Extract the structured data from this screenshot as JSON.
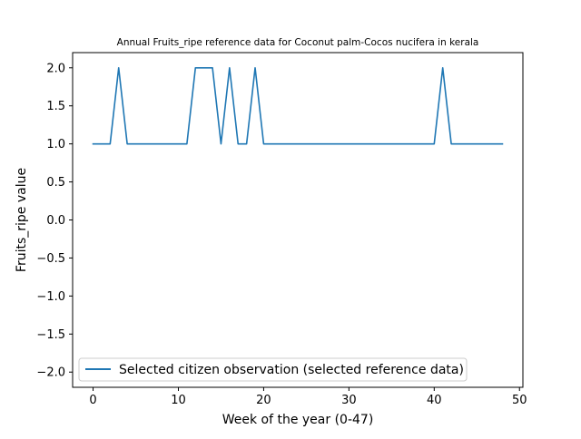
{
  "chart_data": {
    "type": "line",
    "title": "Annual Fruits_ripe reference data for Coconut palm-Cocos nucifera in kerala",
    "xlabel": "Week of the year (0-47)",
    "ylabel": "Fruits_ripe value",
    "xlim": [
      -2.4,
      50.4
    ],
    "ylim": [
      -2.2,
      2.2
    ],
    "xticks": [
      0,
      10,
      20,
      30,
      40,
      50
    ],
    "xtick_labels": [
      "0",
      "10",
      "20",
      "30",
      "40",
      "50"
    ],
    "yticks": [
      2.0,
      1.5,
      1.0,
      0.5,
      0.0,
      -0.5,
      -1.0,
      -1.5,
      -2.0
    ],
    "ytick_labels": [
      "2.0",
      "1.5",
      "1.0",
      "0.5",
      "0.0",
      "−0.5",
      "−1.0",
      "−1.5",
      "−2.0"
    ],
    "grid": false,
    "legend_position": "lower-left",
    "series": [
      {
        "name": "Selected citizen observation (selected reference data)",
        "color": "#1f77b4",
        "x": [
          0,
          1,
          2,
          3,
          4,
          5,
          6,
          7,
          8,
          9,
          10,
          11,
          12,
          13,
          14,
          15,
          16,
          17,
          18,
          19,
          20,
          21,
          22,
          23,
          24,
          25,
          26,
          27,
          28,
          29,
          30,
          31,
          32,
          33,
          34,
          35,
          36,
          37,
          38,
          39,
          40,
          41,
          42,
          43,
          44,
          45,
          46,
          47,
          48
        ],
        "y": [
          1,
          1,
          1,
          2,
          1,
          1,
          1,
          1,
          1,
          1,
          1,
          1,
          2,
          2,
          2,
          1,
          2,
          1,
          1,
          2,
          1,
          1,
          1,
          1,
          1,
          1,
          1,
          1,
          1,
          1,
          1,
          1,
          1,
          1,
          1,
          1,
          1,
          1,
          1,
          1,
          1,
          2,
          1,
          1,
          1,
          1,
          1,
          1,
          1
        ]
      }
    ]
  }
}
